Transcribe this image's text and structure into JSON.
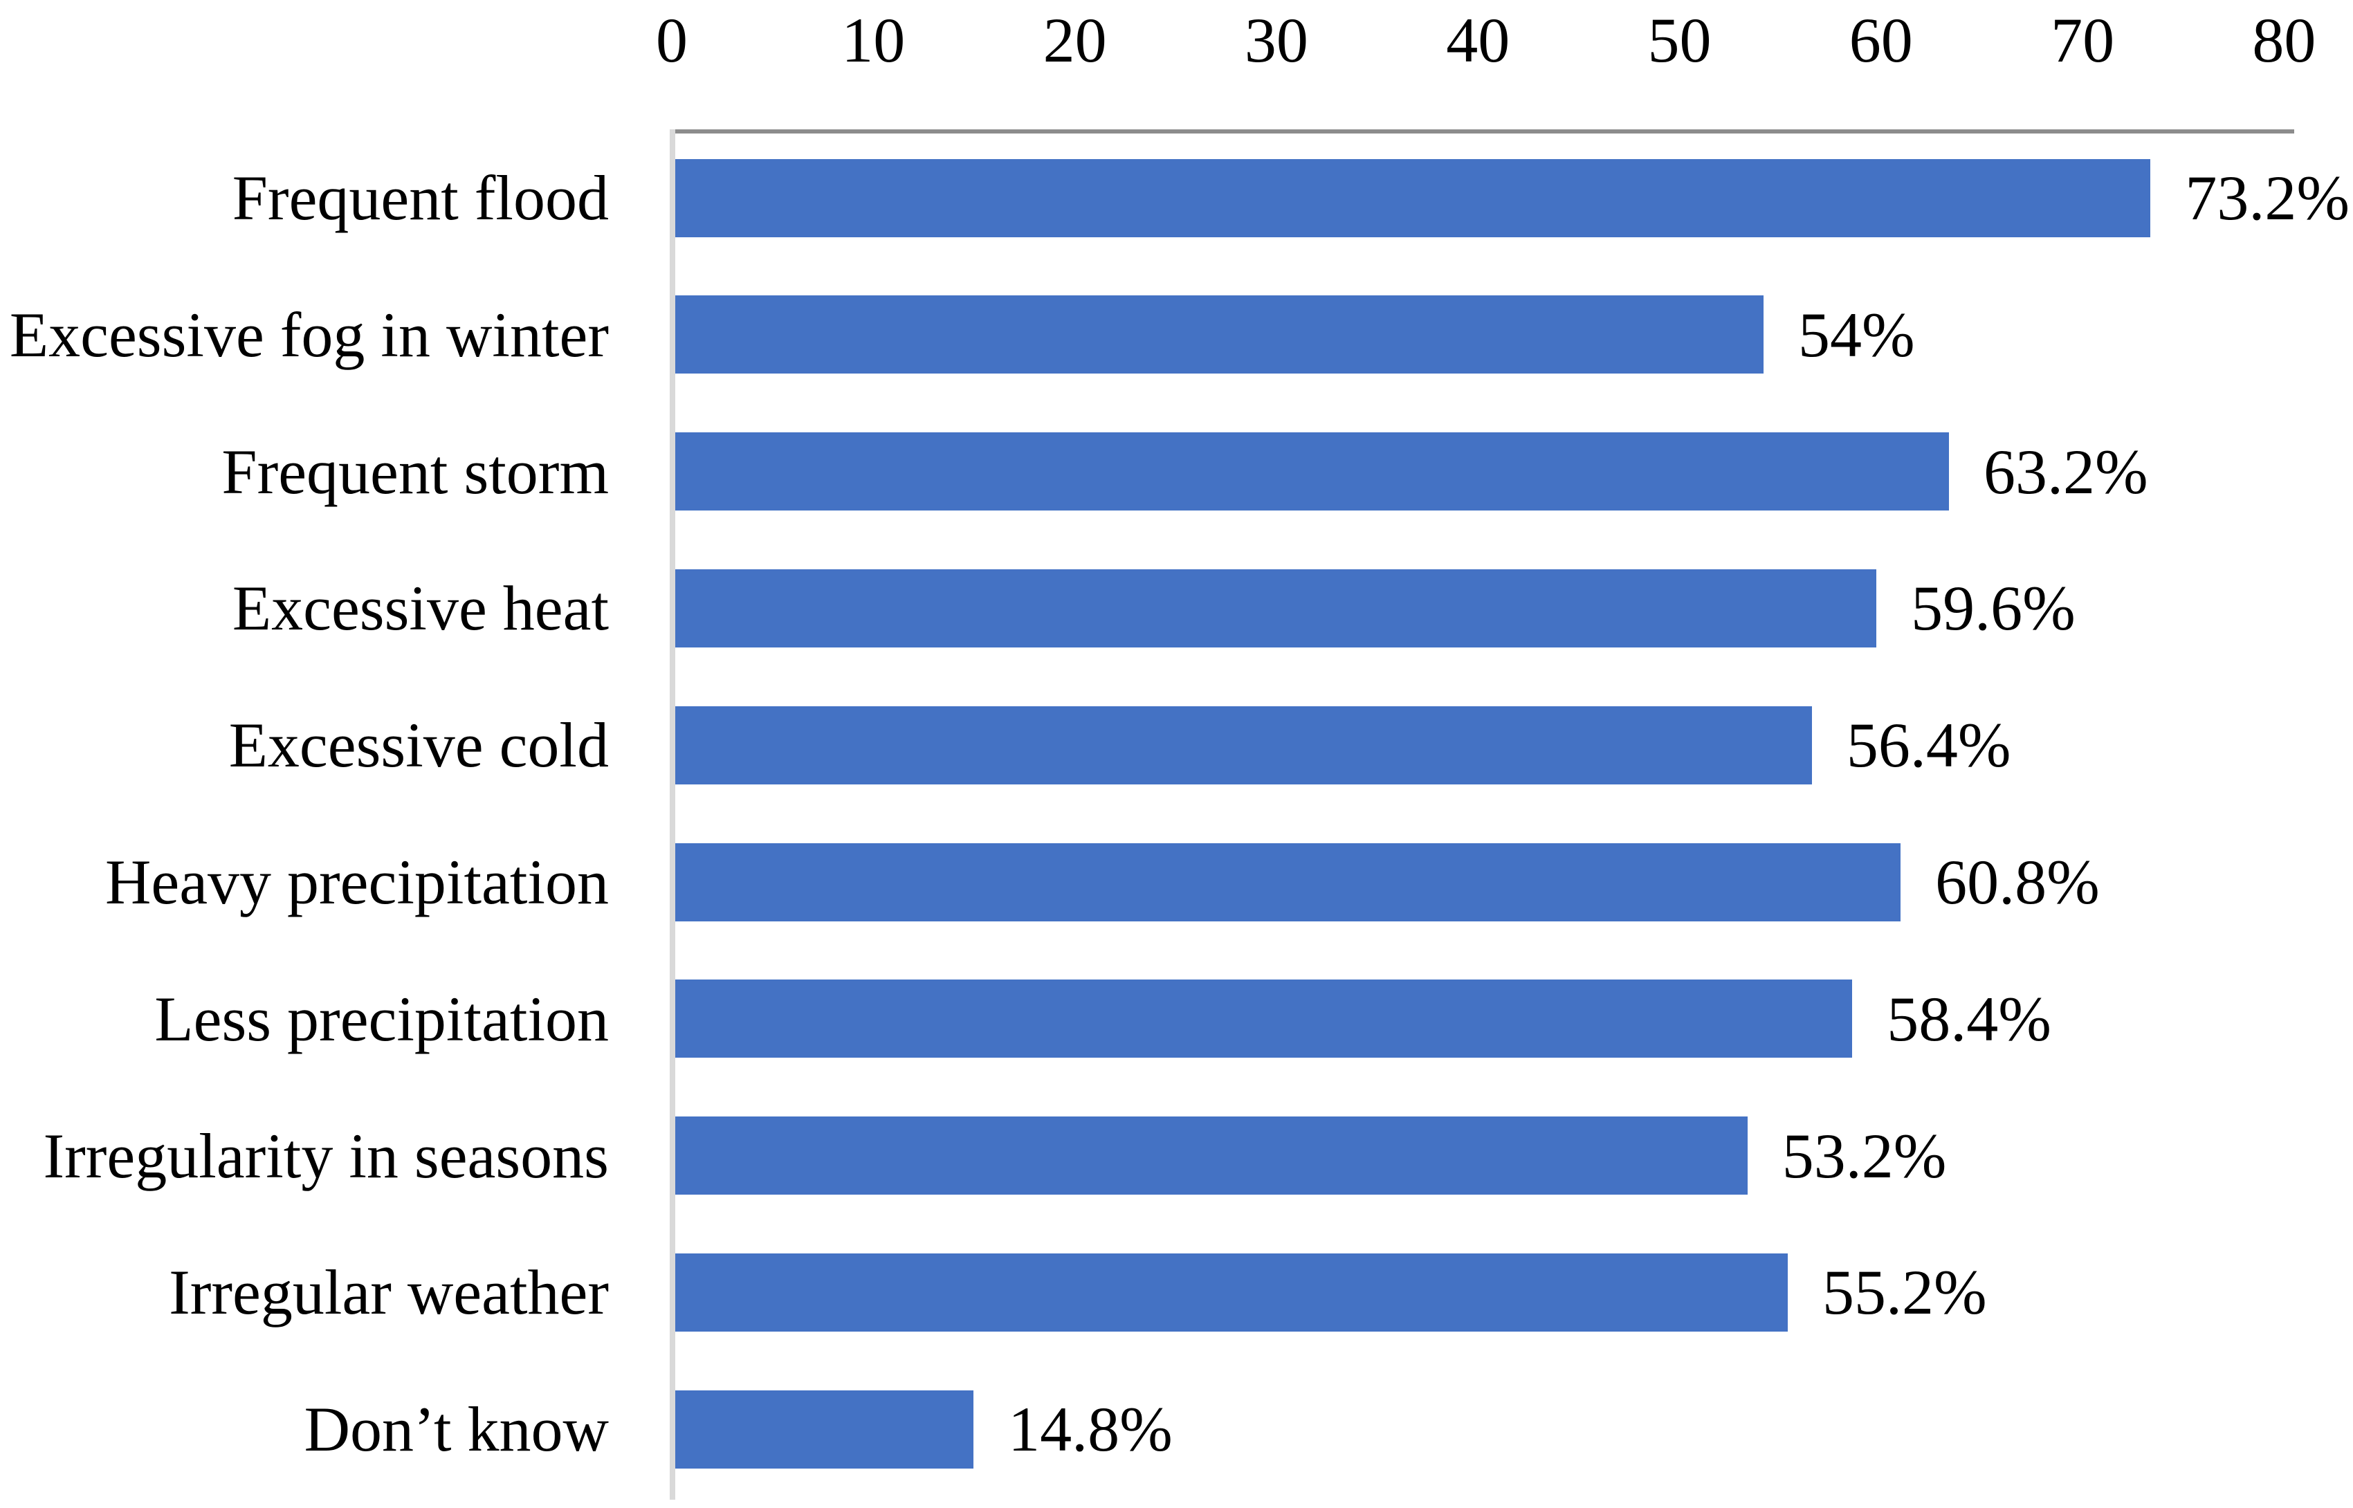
{
  "chart_data": {
    "type": "bar",
    "orientation": "horizontal",
    "title": "",
    "xlabel": "",
    "ylabel": "",
    "categories": [
      "Frequent flood",
      "Excessive fog in winter",
      "Frequent storm",
      "Excessive heat",
      "Excessive cold",
      "Heavy precipitation",
      "Less precipitation",
      "Irregularity in seasons",
      "Irregular weather",
      "Don’t know"
    ],
    "values": [
      73.2,
      54,
      63.2,
      59.6,
      56.4,
      60.8,
      58.4,
      53.2,
      55.2,
      14.8
    ],
    "value_labels": [
      "73.2%",
      "54%",
      "63.2%",
      "59.6%",
      "56.4%",
      "60.8%",
      "58.4%",
      "53.2%",
      "55.2%",
      "14.8%"
    ],
    "xlim": [
      0,
      80
    ],
    "xticks": [
      0,
      10,
      20,
      30,
      40,
      50,
      60,
      70,
      80
    ],
    "tick_labels": [
      "0",
      "10",
      "20",
      "30",
      "40",
      "50",
      "60",
      "70",
      "80"
    ],
    "grid": false,
    "legend": false,
    "axis_position": "top",
    "bar_color": "#4472C4",
    "value_axis_line_color": "#8C8C8C",
    "category_axis_line_color": "#D9D9D9",
    "text_color": "#000000",
    "background_color": "#FFFFFF"
  }
}
